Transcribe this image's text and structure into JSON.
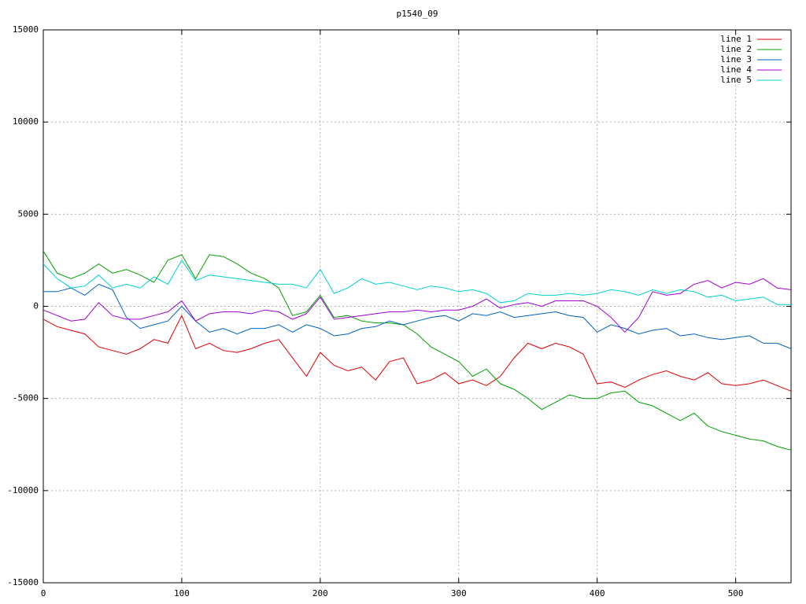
{
  "chart_data": {
    "type": "line",
    "title": "p1540_09",
    "x": [
      0,
      10,
      20,
      30,
      40,
      50,
      60,
      70,
      80,
      90,
      100,
      110,
      120,
      130,
      140,
      150,
      160,
      170,
      180,
      190,
      200,
      210,
      220,
      230,
      240,
      250,
      260,
      270,
      280,
      290,
      300,
      310,
      320,
      330,
      340,
      350,
      360,
      370,
      380,
      390,
      400,
      410,
      420,
      430,
      440,
      450,
      460,
      470,
      480,
      490,
      500,
      510,
      520,
      530,
      540
    ],
    "series": [
      {
        "name": "line 1",
        "color": "#e00000",
        "values": [
          -700,
          -1100,
          -1300,
          -1500,
          -2200,
          -2400,
          -2600,
          -2300,
          -1800,
          -2000,
          -500,
          -2300,
          -2000,
          -2400,
          -2500,
          -2300,
          -2000,
          -1800,
          -2800,
          -3800,
          -2500,
          -3200,
          -3500,
          -3300,
          -4000,
          -3000,
          -2800,
          -4200,
          -4000,
          -3600,
          -4200,
          -4000,
          -4300,
          -3800,
          -2800,
          -2000,
          -2300,
          -2000,
          -2200,
          -2600,
          -4200,
          -4100,
          -4400,
          -4000,
          -3700,
          -3500,
          -3800,
          -4000,
          -3600,
          -4200,
          -4300,
          -4200,
          -4000,
          -4300,
          -4600
        ]
      },
      {
        "name": "line 2",
        "color": "#00a000",
        "values": [
          3000,
          1800,
          1500,
          1800,
          2300,
          1800,
          2000,
          1700,
          1300,
          2500,
          2800,
          1500,
          2800,
          2700,
          2300,
          1800,
          1500,
          1000,
          -500,
          -300,
          600,
          -600,
          -500,
          -800,
          -900,
          -900,
          -1000,
          -1500,
          -2200,
          -2600,
          -3000,
          -3800,
          -3400,
          -4200,
          -4500,
          -5000,
          -5600,
          -5200,
          -4800,
          -5000,
          -5000,
          -4700,
          -4600,
          -5200,
          -5400,
          -5800,
          -6200,
          -5800,
          -6500,
          -6800,
          -7000,
          -7200,
          -7300,
          -7600,
          -7800
        ]
      },
      {
        "name": "line 3",
        "color": "#0060c0",
        "values": [
          800,
          800,
          1000,
          600,
          1200,
          900,
          -600,
          -1200,
          -1000,
          -800,
          0,
          -800,
          -1400,
          -1200,
          -1500,
          -1200,
          -1200,
          -1000,
          -1400,
          -1000,
          -1200,
          -1600,
          -1500,
          -1200,
          -1100,
          -800,
          -1000,
          -800,
          -600,
          -500,
          -800,
          -400,
          -500,
          -300,
          -600,
          -500,
          -400,
          -300,
          -500,
          -600,
          -1400,
          -1000,
          -1200,
          -1500,
          -1300,
          -1200,
          -1600,
          -1500,
          -1700,
          -1800,
          -1700,
          -1600,
          -2000,
          -2000,
          -2300
        ]
      },
      {
        "name": "line 4",
        "color": "#a000d0",
        "values": [
          -200,
          -500,
          -800,
          -700,
          200,
          -500,
          -700,
          -700,
          -500,
          -300,
          300,
          -800,
          -400,
          -300,
          -300,
          -400,
          -200,
          -300,
          -700,
          -400,
          500,
          -700,
          -600,
          -500,
          -400,
          -300,
          -300,
          -200,
          -300,
          -200,
          -200,
          0,
          400,
          -100,
          100,
          200,
          0,
          300,
          300,
          300,
          0,
          -600,
          -1400,
          -600,
          800,
          600,
          700,
          1200,
          1400,
          1000,
          1300,
          1200,
          1500,
          1000,
          900
        ]
      },
      {
        "name": "line 5",
        "color": "#00d0d0",
        "values": [
          2300,
          1500,
          1000,
          1100,
          1700,
          1000,
          1200,
          1000,
          1600,
          1200,
          2500,
          1400,
          1700,
          1600,
          1500,
          1400,
          1300,
          1200,
          1200,
          1000,
          2000,
          700,
          1000,
          1500,
          1200,
          1300,
          1100,
          900,
          1100,
          1000,
          800,
          900,
          700,
          200,
          300,
          700,
          600,
          600,
          700,
          600,
          700,
          900,
          800,
          600,
          900,
          700,
          900,
          800,
          500,
          600,
          300,
          400,
          500,
          100,
          100
        ]
      }
    ],
    "xlim": [
      0,
      540
    ],
    "xticks": [
      0,
      100,
      200,
      300,
      400,
      500
    ],
    "ylim": [
      -15000,
      15000
    ],
    "yticks": [
      -15000,
      -10000,
      -5000,
      0,
      5000,
      10000,
      15000
    ],
    "grid": true,
    "legend": "top-right"
  }
}
